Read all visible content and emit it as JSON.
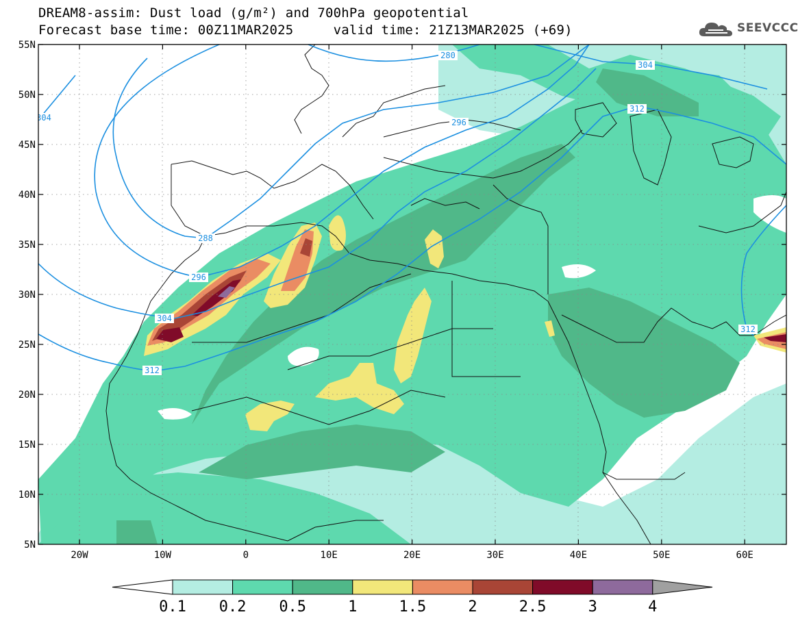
{
  "title": {
    "line1": "DREAM8-assim: Dust load (g/m²) and 700hPa geopotential",
    "line2": "Forecast base time: 00Z11MAR2025     valid time: 21Z13MAR2025 (+69)"
  },
  "logo": {
    "text": "SEEVCCC",
    "icon": "cloud-icon"
  },
  "map": {
    "lat_ticks": [
      "55N",
      "50N",
      "45N",
      "40N",
      "35N",
      "30N",
      "25N",
      "20N",
      "15N",
      "10N",
      "5N"
    ],
    "lon_ticks": [
      "20W",
      "10W",
      "0",
      "10E",
      "20E",
      "30E",
      "40E",
      "50E",
      "60E"
    ],
    "contours": [
      {
        "label": "280"
      },
      {
        "label": "288"
      },
      {
        "label": "296"
      },
      {
        "label": "296"
      },
      {
        "label": "304"
      },
      {
        "label": "304"
      },
      {
        "label": "304"
      },
      {
        "label": "312"
      },
      {
        "label": "312"
      },
      {
        "label": "312"
      }
    ]
  },
  "colorbar": {
    "labels": [
      "0.1",
      "0.2",
      "0.5",
      "1",
      "1.5",
      "2",
      "2.5",
      "3",
      "4"
    ],
    "colors": [
      "#ffffff",
      "#b4ede2",
      "#5ed9ae",
      "#50b889",
      "#f2e77a",
      "#ea8c63",
      "#a94536",
      "#800b29",
      "#8e6a9c",
      "#a0a0a0"
    ]
  },
  "colors": {
    "contour": "#1b8fe0",
    "very_light": "#b4ede2",
    "light": "#5ed9ae",
    "medium": "#50b889",
    "yellow": "#f2e77a",
    "orange": "#ea8c63",
    "brown": "#a94536",
    "maroon": "#800b29",
    "purple": "#8e6a9c"
  }
}
